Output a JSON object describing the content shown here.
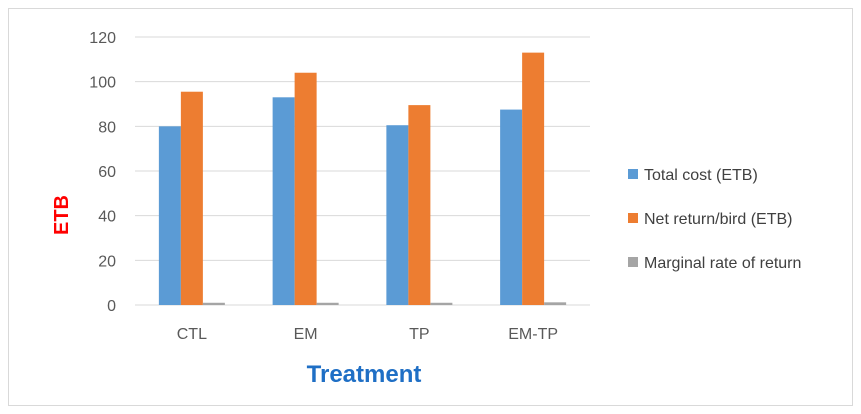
{
  "chart_data": {
    "type": "bar",
    "categories": [
      "CTL",
      "EM",
      "TP",
      "EM-TP"
    ],
    "series": [
      {
        "name": "Total cost (ETB)",
        "color": "#5b9bd5",
        "values": [
          80,
          93,
          80.5,
          87.5
        ]
      },
      {
        "name": "Net return/bird (ETB)",
        "color": "#ed7d31",
        "values": [
          95.5,
          104,
          89.5,
          113
        ]
      },
      {
        "name": "Marginal rate of return",
        "color": "#a5a5a5",
        "values": [
          1,
          1,
          1,
          1.2
        ]
      }
    ],
    "xlabel": "Treatment",
    "ylabel": "ETB",
    "ylim": [
      0,
      120
    ],
    "yticks": [
      0,
      20,
      40,
      60,
      80,
      100,
      120
    ],
    "grid": true,
    "legend_position": "right",
    "xlabel_color": "#1f6fc5",
    "ylabel_color": "#ff0000"
  }
}
